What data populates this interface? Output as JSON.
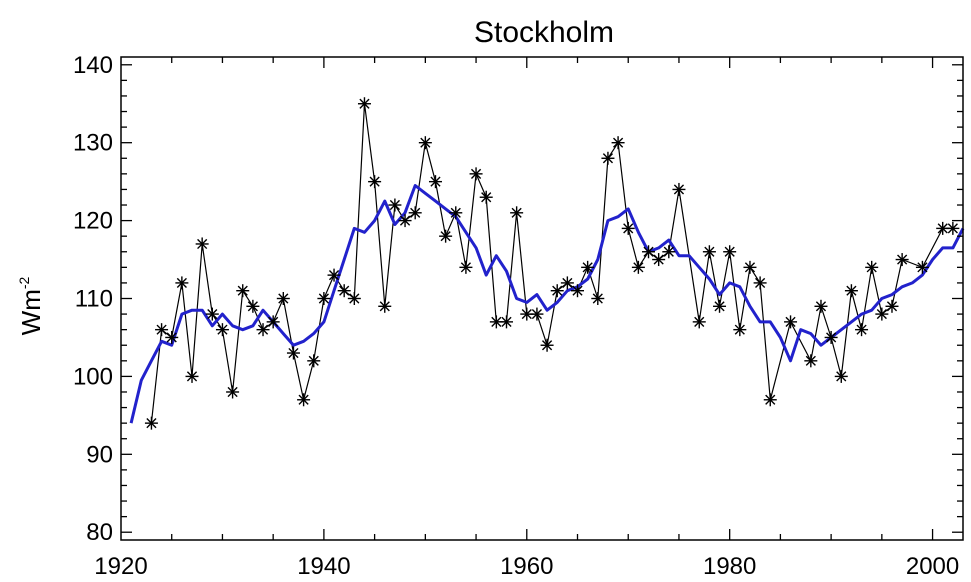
{
  "chart_data": {
    "type": "line",
    "title": "Stockholm",
    "ylabel_base": "Wm",
    "ylabel_sup": "-2",
    "xlabel": "",
    "xlim": [
      1920,
      2003
    ],
    "ylim": [
      79,
      141
    ],
    "xticks": [
      "1920",
      "1940",
      "1960",
      "1980",
      "2000"
    ],
    "yticks": [
      "80",
      "90",
      "100",
      "110",
      "120",
      "130",
      "140"
    ],
    "grid": false,
    "colors": {
      "annual": "#000000",
      "smoothed": "#2222cc"
    },
    "series": [
      {
        "style": "line-asterisk",
        "x": [
          1923,
          1924,
          1925,
          1926,
          1927,
          1928,
          1929,
          1930,
          1931,
          1932,
          1933,
          1934,
          1935,
          1936,
          1937,
          1938,
          1939,
          1940,
          1941,
          1942,
          1943,
          1944,
          1945,
          1946,
          1947,
          1948,
          1949,
          1950,
          1951,
          1952,
          1953,
          1954,
          1955,
          1956,
          1957,
          1958,
          1959,
          1960,
          1961,
          1962,
          1963,
          1964,
          1965,
          1966,
          1967,
          1968,
          1969,
          1970,
          1971,
          1972,
          1973,
          1974,
          1975,
          1977,
          1978,
          1979,
          1980,
          1981,
          1982,
          1983,
          1984,
          1986,
          1988,
          1989,
          1990,
          1991,
          1992,
          1993,
          1994,
          1995,
          1996,
          1997,
          1999,
          2001,
          2002
        ],
        "y": [
          94,
          106,
          105,
          112,
          100,
          117,
          108,
          106,
          98,
          111,
          109,
          106,
          107,
          110,
          103,
          97,
          102,
          110,
          113,
          111,
          110,
          135,
          125,
          109,
          122,
          120,
          121,
          130,
          125,
          118,
          121,
          114,
          126,
          123,
          107,
          107,
          121,
          108,
          108,
          104,
          111,
          112,
          111,
          114,
          110,
          128,
          130,
          119,
          114,
          116,
          115,
          116,
          124,
          107,
          116,
          109,
          116,
          106,
          114,
          112,
          97,
          107,
          102,
          109,
          105,
          100,
          111,
          106,
          114,
          108,
          109,
          115,
          114,
          119,
          119
        ]
      },
      {
        "style": "smooth-line",
        "x": [
          1921,
          1922,
          1923,
          1924,
          1925,
          1926,
          1927,
          1928,
          1929,
          1930,
          1931,
          1932,
          1933,
          1934,
          1935,
          1936,
          1937,
          1938,
          1939,
          1940,
          1941,
          1942,
          1943,
          1944,
          1945,
          1946,
          1947,
          1948,
          1949,
          1950,
          1951,
          1952,
          1953,
          1954,
          1955,
          1956,
          1957,
          1958,
          1959,
          1960,
          1961,
          1962,
          1963,
          1964,
          1965,
          1966,
          1967,
          1968,
          1969,
          1970,
          1971,
          1972,
          1973,
          1974,
          1975,
          1976,
          1977,
          1978,
          1979,
          1980,
          1981,
          1982,
          1983,
          1984,
          1985,
          1986,
          1987,
          1988,
          1989,
          1990,
          1991,
          1992,
          1993,
          1994,
          1995,
          1996,
          1997,
          1998,
          1999,
          2000,
          2001,
          2002,
          2003
        ],
        "y": [
          94,
          99.5,
          102,
          104.5,
          104,
          108,
          108.5,
          108.5,
          106.5,
          108,
          106.5,
          106,
          106.5,
          108.5,
          107,
          105.5,
          104,
          104.5,
          105.5,
          107,
          111,
          115,
          119,
          118.5,
          120,
          122.5,
          119.5,
          121,
          124.5,
          123.5,
          122.5,
          121.5,
          120.5,
          118.5,
          116.5,
          113,
          115.5,
          113.5,
          110,
          109.5,
          110.5,
          108.5,
          109.5,
          111,
          111.5,
          112.5,
          115,
          120,
          120.5,
          121.5,
          118.5,
          116,
          116.5,
          117.5,
          115.5,
          115.5,
          114,
          112.5,
          110.5,
          112,
          111.5,
          109,
          107,
          107,
          105,
          102,
          106,
          105.5,
          104,
          105,
          106,
          107,
          108,
          108.5,
          110,
          110.5,
          111.5,
          112,
          113,
          115,
          116.5,
          116.5,
          119
        ]
      }
    ]
  }
}
